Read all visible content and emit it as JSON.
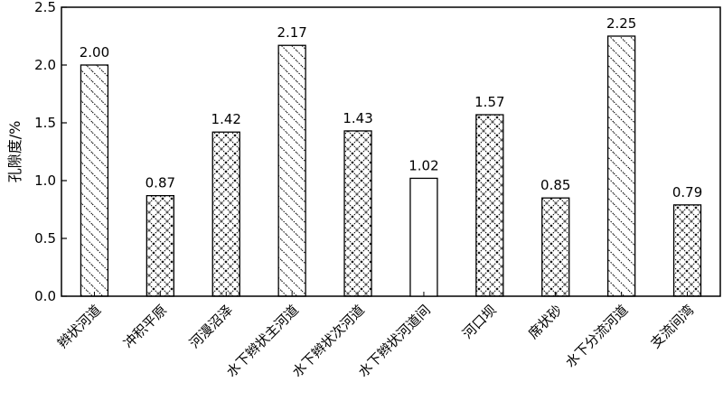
{
  "chart_data": {
    "type": "bar",
    "ylabel": "孔隙度/%",
    "xlabel": "",
    "title": "",
    "ylim": [
      0,
      2.5
    ],
    "yticks": [
      "0.0",
      "0.5",
      "1.0",
      "1.5",
      "2.0",
      "2.5"
    ],
    "categories": [
      "辫状河道",
      "冲积平原",
      "河漫沼泽",
      "水下辫状主河道",
      "水下辫状次河道",
      "水下辫状河道间",
      "河口坝",
      "席状砂",
      "水下分流河道",
      "支流间湾"
    ],
    "values": [
      2.0,
      0.87,
      1.42,
      2.17,
      1.43,
      1.02,
      1.57,
      0.85,
      2.25,
      0.79
    ],
    "value_labels": [
      "2.00",
      "0.87",
      "1.42",
      "2.17",
      "1.43",
      "1.02",
      "1.57",
      "0.85",
      "2.25",
      "0.79"
    ],
    "patterns": [
      "hatch",
      "cross",
      "cross",
      "hatch",
      "cross",
      "blank",
      "cross",
      "cross",
      "hatch",
      "cross"
    ],
    "grid": false,
    "legend": "none"
  }
}
